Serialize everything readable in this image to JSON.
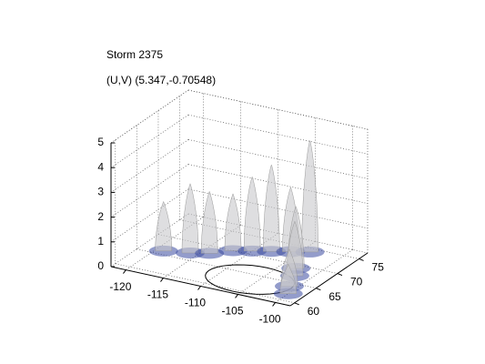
{
  "chart_data": {
    "type": "isosurface3d",
    "title": "Storm 2375",
    "subtitle": "(U,V) (5.347,-0.70548)",
    "x": [
      -119,
      -116,
      -114,
      -112,
      -110,
      -108,
      -106,
      -104,
      -103,
      -102,
      -101,
      -100
    ],
    "y": [
      66,
      67,
      68,
      70,
      71,
      72,
      73,
      74,
      69,
      67,
      64,
      62
    ],
    "z": [
      2.0,
      2.8,
      2.5,
      2.3,
      3.0,
      3.5,
      2.6,
      4.5,
      2.5,
      2.2,
      1.5,
      1.2
    ],
    "color": "#c8c8cc",
    "base_color": "#3a4aa0",
    "xlim": [
      -122,
      -98
    ],
    "ylim": [
      59,
      77
    ],
    "zlim": [
      0,
      5
    ],
    "xticks": [
      -120,
      -115,
      -110,
      -105,
      -100
    ],
    "yticks": [
      60,
      65,
      70,
      75
    ],
    "zticks": [
      0,
      1,
      2,
      3,
      4,
      5
    ],
    "grid": true
  }
}
